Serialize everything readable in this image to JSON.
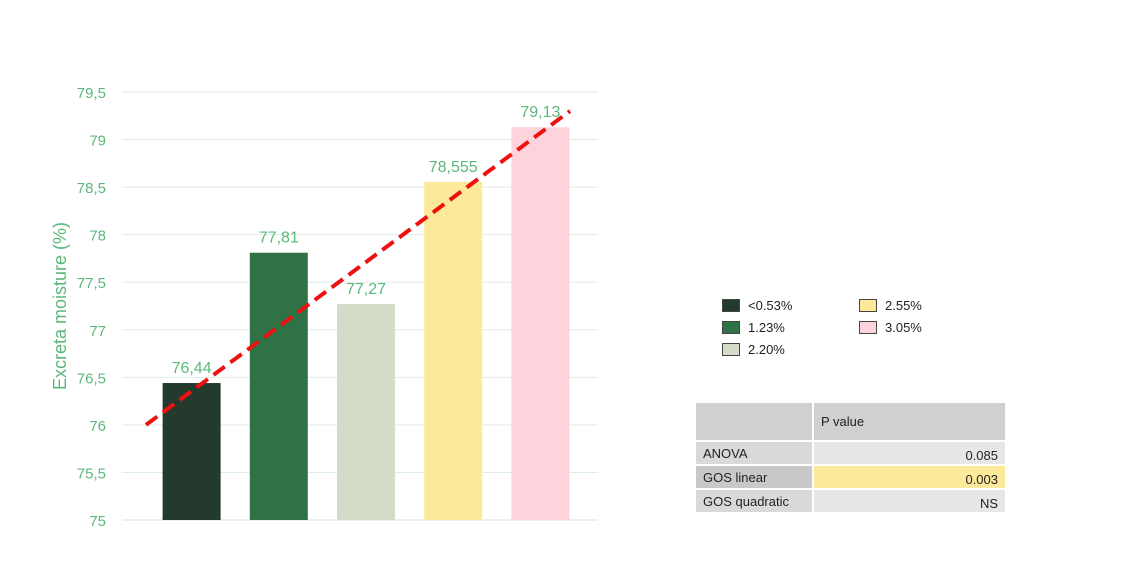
{
  "chart_data": {
    "type": "bar",
    "ylabel": "Excreta moisture (%)",
    "ylim": [
      75,
      79.5
    ],
    "yticks": [
      "75",
      "75,5",
      "76",
      "76,5",
      "77",
      "77,5",
      "78",
      "78,5",
      "79",
      "79,5"
    ],
    "grid": true,
    "series": [
      {
        "name": "<0.53%",
        "value": 76.44,
        "label": "76,44",
        "color": "#233a2c"
      },
      {
        "name": "1.23%",
        "value": 77.81,
        "label": "77,81",
        "color": "#2f7245"
      },
      {
        "name": "2.20%",
        "value": 77.27,
        "label": "77,27",
        "color": "#d4dcc9"
      },
      {
        "name": "2.55%",
        "value": 78.555,
        "label": "78,555",
        "color": "#fde99a"
      },
      {
        "name": "3.05%",
        "value": 79.13,
        "label": "79,13",
        "color": "#fed3dc"
      }
    ],
    "trendline": {
      "style": "dashed",
      "color": "#ee1111",
      "start": 76.0,
      "end": 79.3
    },
    "axis_text_color": "#5cb87a"
  },
  "legend": {
    "items": [
      {
        "label": "<0.53%",
        "color": "#233a2c"
      },
      {
        "label": "2.55%",
        "color": "#fde99a"
      },
      {
        "label": "1.23%",
        "color": "#2f7245"
      },
      {
        "label": "3.05%",
        "color": "#fed3dc"
      },
      {
        "label": "2.20%",
        "color": "#d4dcc9"
      }
    ]
  },
  "stats_table": {
    "header": {
      "col1": "",
      "col2": "P value"
    },
    "rows": [
      {
        "label": "ANOVA",
        "value": "0.085",
        "highlight": false
      },
      {
        "label": "GOS linear",
        "value": "0.003",
        "highlight": true
      },
      {
        "label": "GOS quadratic",
        "value": "NS",
        "highlight": false
      }
    ]
  }
}
